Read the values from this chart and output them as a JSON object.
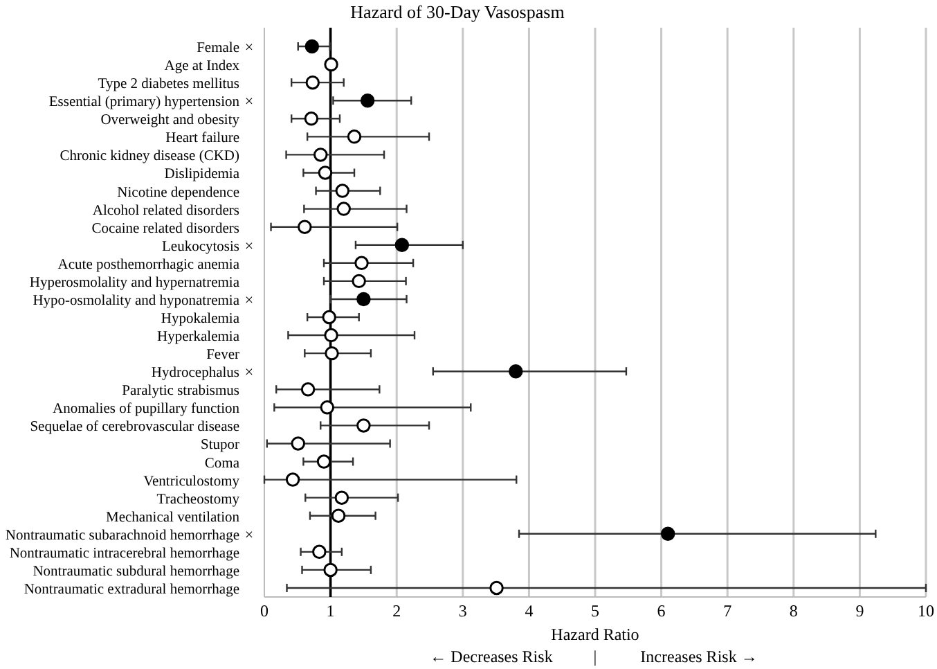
{
  "chart_data": {
    "type": "scatter",
    "title": "Hazard of 30-Day Vasospasm",
    "xlabel": "Hazard Ratio",
    "orientation": "horizontal",
    "categories": [
      "Female",
      "Age at Index",
      "Type 2 diabetes mellitus",
      "Essential (primary) hypertension",
      "Overweight and obesity",
      "Heart failure",
      "Chronic kidney disease (CKD)",
      "Dislipidemia",
      "Nicotine dependence",
      "Alcohol related disorders",
      "Cocaine related disorders",
      "Leukocytosis",
      "Acute posthemorrhagic anemia",
      "Hyperosmolality and hypernatremia",
      "Hypo-osmolality and hyponatremia",
      "Hypokalemia",
      "Hyperkalemia",
      "Fever",
      "Hydrocephalus",
      "Paralytic strabismus",
      "Anomalies of pupillary function",
      "Sequelae of cerebrovascular disease",
      "Stupor",
      "Coma",
      "Ventriculostomy",
      "Tracheostomy",
      "Mechanical ventilation",
      "Nontraumatic subarachnoid hemorrhage",
      "Nontraumatic intracerebral hemorrhage",
      "Nontraumatic subdural hemorrhage",
      "Nontraumatic extradural hemorrhage"
    ],
    "series": [
      {
        "color": "#000000",
        "values": [
          0.72,
          null,
          null,
          1.56,
          null,
          null,
          null,
          null,
          null,
          null,
          null,
          2.08,
          null,
          null,
          1.5,
          null,
          null,
          null,
          3.8,
          null,
          null,
          null,
          null,
          null,
          null,
          null,
          null,
          6.1,
          null,
          null,
          null
        ],
        "errors": [
          [
            0.51,
            0.99
          ],
          null,
          null,
          [
            1.04,
            2.22
          ],
          null,
          null,
          null,
          null,
          null,
          null,
          null,
          [
            1.38,
            3.0
          ],
          null,
          null,
          [
            1.0,
            2.15
          ],
          null,
          null,
          null,
          [
            2.55,
            5.47
          ],
          null,
          null,
          null,
          null,
          null,
          null,
          null,
          null,
          [
            3.85,
            9.24
          ],
          null,
          null,
          null
        ]
      },
      {
        "color": "#ffffff",
        "values": [
          null,
          1.01,
          0.73,
          null,
          0.71,
          1.36,
          0.85,
          0.92,
          1.18,
          1.2,
          0.61,
          null,
          1.47,
          1.43,
          null,
          0.98,
          1.01,
          1.02,
          null,
          0.66,
          0.95,
          1.5,
          0.51,
          0.9,
          0.43,
          1.17,
          1.12,
          null,
          0.83,
          1.0,
          3.51
        ],
        "errors": [
          null,
          null,
          [
            0.41,
            1.2
          ],
          null,
          [
            0.41,
            1.14
          ],
          [
            0.65,
            2.49
          ],
          [
            0.33,
            1.81
          ],
          [
            0.59,
            1.36
          ],
          [
            0.78,
            1.75
          ],
          [
            0.6,
            2.15
          ],
          [
            0.1,
            2.01
          ],
          null,
          [
            0.9,
            2.25
          ],
          [
            0.9,
            2.14
          ],
          null,
          [
            0.65,
            1.43
          ],
          [
            0.36,
            2.27
          ],
          [
            0.61,
            1.61
          ],
          null,
          [
            0.18,
            1.74
          ],
          [
            0.15,
            3.12
          ],
          [
            0.85,
            2.49
          ],
          [
            0.04,
            1.9
          ],
          [
            0.59,
            1.34
          ],
          [
            0.0,
            3.81
          ],
          [
            0.62,
            2.02
          ],
          [
            0.69,
            1.68
          ],
          null,
          [
            0.55,
            1.17
          ],
          [
            0.57,
            1.61
          ],
          [
            0.34,
            10.0
          ]
        ]
      }
    ],
    "marker": "circle",
    "xlim": [
      0,
      10
    ],
    "xticks": [
      0,
      1,
      2,
      3,
      4,
      5,
      6,
      7,
      8,
      9,
      10
    ],
    "grid": "x",
    "ref_lines": [
      {
        "axis": "x",
        "value": 1,
        "color": "#000000"
      }
    ],
    "annotations": [
      "×",
      "×",
      "×",
      "×",
      "×",
      "×",
      "← Decreases Risk",
      "|",
      "Increases Risk →"
    ]
  }
}
